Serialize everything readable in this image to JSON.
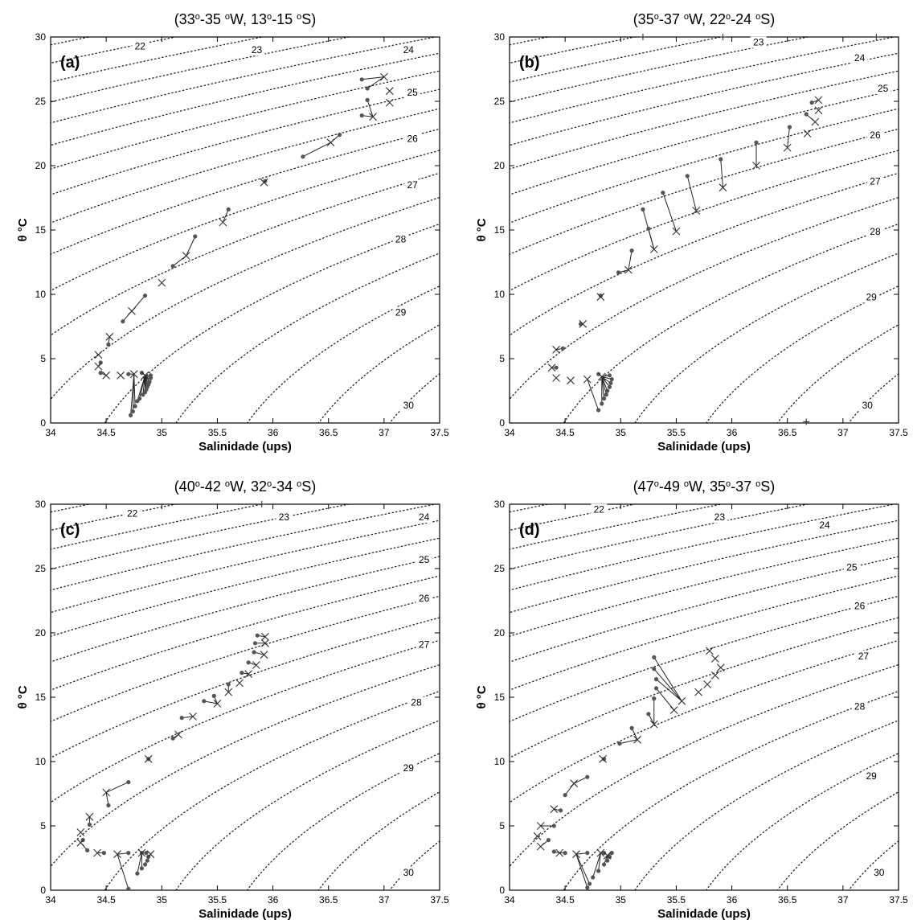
{
  "chart_data": [
    {
      "type": "scatter",
      "panel": "(a)",
      "title": "(33o-35 oW, 13o-15 oS)",
      "title_parts": [
        "(33",
        "o",
        "-35 ",
        "o",
        "W, 13",
        "o",
        "-15 ",
        "o",
        "S)"
      ],
      "xlabel": "Salinidade (ups)",
      "ylabel": "θ °C",
      "xlim": [
        34,
        37.5
      ],
      "ylim": [
        0,
        30
      ],
      "xticks": [
        "34",
        "34.5",
        "35",
        "35.5",
        "36",
        "36.5",
        "37",
        "37.5"
      ],
      "yticks": [
        "0",
        "5",
        "10",
        "15",
        "20",
        "25",
        "30"
      ],
      "isopycnal_labels": [
        "22",
        "23",
        "24",
        "25",
        "26",
        "27",
        "28",
        "29",
        "30"
      ],
      "series": [
        {
          "marker": "dot",
          "points": [
            [
              36.8,
              26.7
            ],
            [
              36.85,
              26.0
            ],
            [
              36.85,
              25.1
            ],
            [
              36.8,
              23.9
            ],
            [
              36.6,
              22.4
            ],
            [
              36.27,
              20.7
            ],
            [
              35.93,
              18.8
            ],
            [
              35.6,
              16.6
            ],
            [
              35.3,
              14.5
            ],
            [
              35.1,
              12.2
            ],
            [
              34.85,
              9.9
            ],
            [
              34.65,
              7.9
            ],
            [
              34.52,
              6.1
            ],
            [
              34.45,
              4.7
            ],
            [
              34.45,
              3.9
            ],
            [
              34.7,
              3.8
            ],
            [
              34.82,
              3.9
            ],
            [
              34.9,
              3.7
            ],
            [
              34.9,
              3.5
            ],
            [
              34.89,
              3.2
            ],
            [
              34.88,
              3.0
            ],
            [
              34.87,
              2.8
            ],
            [
              34.86,
              2.6
            ],
            [
              34.85,
              2.4
            ],
            [
              34.83,
              2.2
            ],
            [
              34.8,
              1.9
            ],
            [
              34.78,
              1.7
            ],
            [
              34.76,
              1.3
            ],
            [
              34.74,
              0.9
            ],
            [
              34.72,
              0.6
            ]
          ]
        },
        {
          "marker": "x",
          "points": [
            [
              37.0,
              26.9
            ],
            [
              37.05,
              25.8
            ],
            [
              37.05,
              24.9
            ],
            [
              36.9,
              23.8
            ],
            [
              36.52,
              21.8
            ],
            [
              35.92,
              18.7
            ],
            [
              35.55,
              15.6
            ],
            [
              35.22,
              13.0
            ],
            [
              35.0,
              10.9
            ],
            [
              34.73,
              8.7
            ],
            [
              34.53,
              6.7
            ],
            [
              34.43,
              5.3
            ],
            [
              34.43,
              4.4
            ],
            [
              34.5,
              3.7
            ],
            [
              34.63,
              3.7
            ],
            [
              34.75,
              3.8
            ],
            [
              34.85,
              3.7
            ]
          ]
        }
      ]
    },
    {
      "type": "scatter",
      "panel": "(b)",
      "title": "(35o-37 oW, 22o-24 oS)",
      "title_parts": [
        "(35",
        "o",
        "-37 ",
        "o",
        "W, 22",
        "o",
        "-24 ",
        "o",
        "S)"
      ],
      "xlabel": "Salinidade (ups)",
      "ylabel": "θ °C",
      "xlim": [
        34,
        37.5
      ],
      "ylim": [
        0,
        30
      ],
      "xticks": [
        "34",
        "34.5",
        "35",
        "35.5",
        "36",
        "36.5",
        "37",
        "37.5"
      ],
      "yticks": [
        "0",
        "5",
        "10",
        "15",
        "20",
        "25",
        "30"
      ],
      "isopycnal_labels": [
        "23",
        "24",
        "25",
        "26",
        "27",
        "28",
        "29",
        "30"
      ],
      "series": [
        {
          "marker": "dot",
          "points": [
            [
              36.72,
              24.9
            ],
            [
              36.67,
              24.0
            ],
            [
              36.52,
              23.0
            ],
            [
              36.22,
              21.8
            ],
            [
              35.9,
              20.5
            ],
            [
              35.6,
              19.2
            ],
            [
              35.38,
              17.9
            ],
            [
              35.2,
              16.6
            ],
            [
              35.25,
              15.1
            ],
            [
              35.1,
              13.4
            ],
            [
              34.98,
              11.7
            ],
            [
              34.82,
              9.9
            ],
            [
              34.64,
              7.7
            ],
            [
              34.48,
              5.8
            ],
            [
              34.42,
              4.3
            ],
            [
              34.8,
              3.8
            ],
            [
              34.9,
              3.7
            ],
            [
              34.92,
              3.4
            ],
            [
              34.91,
              3.1
            ],
            [
              34.9,
              2.8
            ],
            [
              34.88,
              2.5
            ],
            [
              34.87,
              2.2
            ],
            [
              34.85,
              1.9
            ],
            [
              34.83,
              1.5
            ],
            [
              34.8,
              1.0
            ]
          ]
        },
        {
          "marker": "x",
          "points": [
            [
              36.78,
              25.1
            ],
            [
              36.78,
              24.3
            ],
            [
              36.75,
              23.4
            ],
            [
              36.68,
              22.5
            ],
            [
              36.5,
              21.4
            ],
            [
              36.22,
              20.0
            ],
            [
              35.92,
              18.3
            ],
            [
              35.68,
              16.5
            ],
            [
              35.5,
              14.9
            ],
            [
              35.3,
              13.5
            ],
            [
              35.07,
              11.9
            ],
            [
              34.82,
              9.8
            ],
            [
              34.66,
              7.7
            ],
            [
              34.42,
              5.7
            ],
            [
              34.38,
              4.3
            ],
            [
              34.42,
              3.5
            ],
            [
              34.55,
              3.3
            ],
            [
              34.7,
              3.4
            ],
            [
              34.83,
              3.6
            ]
          ]
        },
        {
          "marker": "plus",
          "points": [
            [
              35.2,
              30.0
            ],
            [
              35.92,
              30.0
            ],
            [
              37.3,
              30.0
            ],
            [
              36.67,
              0.1
            ]
          ]
        }
      ]
    },
    {
      "type": "scatter",
      "panel": "(c)",
      "title": "(40o-42 oW, 32o-34 oS)",
      "title_parts": [
        "(40",
        "o",
        "-42 ",
        "o",
        "W, 32",
        "o",
        "-34 ",
        "o",
        "S)"
      ],
      "xlabel": "Salinidade (ups)",
      "ylabel": "θ °C",
      "xlim": [
        34,
        37.5
      ],
      "ylim": [
        0,
        30
      ],
      "xticks": [
        "34",
        "34.5",
        "35",
        "35.5",
        "36",
        "36.5",
        "37",
        "37.5"
      ],
      "yticks": [
        "0",
        "5",
        "10",
        "15",
        "20",
        "25",
        "30"
      ],
      "isopycnal_labels": [
        "22",
        "23",
        "24",
        "25",
        "26",
        "27",
        "28",
        "29",
        "30"
      ],
      "series": [
        {
          "marker": "dot",
          "points": [
            [
              35.86,
              19.8
            ],
            [
              35.84,
              19.2
            ],
            [
              35.83,
              18.5
            ],
            [
              35.78,
              17.7
            ],
            [
              35.72,
              16.9
            ],
            [
              35.6,
              16.0
            ],
            [
              35.47,
              15.1
            ],
            [
              35.38,
              14.7
            ],
            [
              35.18,
              13.4
            ],
            [
              35.1,
              11.8
            ],
            [
              34.88,
              10.2
            ],
            [
              34.7,
              8.4
            ],
            [
              34.52,
              6.6
            ],
            [
              34.35,
              5.1
            ],
            [
              34.29,
              3.9
            ],
            [
              34.33,
              3.1
            ],
            [
              34.48,
              2.9
            ],
            [
              34.7,
              2.9
            ],
            [
              34.82,
              2.9
            ],
            [
              34.86,
              2.9
            ],
            [
              34.88,
              2.6
            ],
            [
              34.87,
              2.3
            ],
            [
              34.85,
              2.0
            ],
            [
              34.82,
              1.7
            ],
            [
              34.78,
              1.3
            ],
            [
              34.7,
              0.1
            ]
          ]
        },
        {
          "marker": "x",
          "points": [
            [
              35.93,
              19.7
            ],
            [
              35.93,
              19.2
            ],
            [
              35.92,
              18.3
            ],
            [
              35.85,
              17.5
            ],
            [
              35.78,
              16.8
            ],
            [
              35.7,
              16.1
            ],
            [
              35.6,
              15.4
            ],
            [
              35.5,
              14.5
            ],
            [
              35.28,
              13.5
            ],
            [
              35.15,
              12.1
            ],
            [
              34.88,
              10.2
            ],
            [
              34.5,
              7.6
            ],
            [
              34.35,
              5.7
            ],
            [
              34.27,
              4.5
            ],
            [
              34.27,
              3.7
            ],
            [
              34.42,
              2.9
            ],
            [
              34.6,
              2.8
            ],
            [
              34.82,
              2.9
            ],
            [
              34.9,
              2.8
            ]
          ]
        },
        {
          "marker": "plus",
          "points": [
            [
              35.9,
              30.0
            ]
          ]
        }
      ]
    },
    {
      "type": "scatter",
      "panel": "(d)",
      "title": "(47o-49 oW, 35o-37 oS)",
      "title_parts": [
        "(47",
        "o",
        "-49 ",
        "o",
        "W, 35",
        "o",
        "-37 ",
        "o",
        "S)"
      ],
      "xlabel": "Salinidade (ups)",
      "ylabel": "θ °C",
      "xlim": [
        34,
        37.5
      ],
      "ylim": [
        0,
        30
      ],
      "xticks": [
        "34",
        "34.5",
        "35",
        "35.5",
        "36",
        "36.5",
        "37",
        "37.5"
      ],
      "yticks": [
        "0",
        "5",
        "10",
        "15",
        "20",
        "25",
        "30"
      ],
      "isopycnal_labels": [
        "22",
        "23",
        "24",
        "25",
        "26",
        "27",
        "28",
        "29",
        "30"
      ],
      "series": [
        {
          "marker": "dot",
          "points": [
            [
              35.3,
              18.1
            ],
            [
              35.3,
              17.2
            ],
            [
              35.32,
              16.4
            ],
            [
              35.32,
              15.7
            ],
            [
              35.3,
              14.9
            ],
            [
              35.25,
              13.7
            ],
            [
              35.1,
              12.6
            ],
            [
              34.99,
              11.4
            ],
            [
              34.85,
              10.2
            ],
            [
              34.7,
              8.8
            ],
            [
              34.5,
              7.4
            ],
            [
              34.46,
              6.2
            ],
            [
              34.4,
              5.0
            ],
            [
              34.35,
              3.9
            ],
            [
              34.4,
              3.0
            ],
            [
              34.5,
              2.9
            ],
            [
              34.7,
              2.9
            ],
            [
              34.85,
              2.9
            ],
            [
              34.92,
              2.9
            ],
            [
              34.9,
              2.6
            ],
            [
              34.88,
              2.3
            ],
            [
              34.85,
              2.0
            ],
            [
              34.8,
              1.5
            ],
            [
              34.75,
              1.0
            ],
            [
              34.72,
              0.5
            ],
            [
              34.7,
              0.2
            ]
          ]
        },
        {
          "marker": "x",
          "points": [
            [
              35.8,
              18.6
            ],
            [
              35.85,
              18.0
            ],
            [
              35.9,
              17.3
            ],
            [
              35.85,
              16.7
            ],
            [
              35.78,
              16.0
            ],
            [
              35.7,
              15.4
            ],
            [
              35.55,
              14.7
            ],
            [
              35.48,
              14.0
            ],
            [
              35.3,
              12.9
            ],
            [
              35.15,
              11.7
            ],
            [
              34.84,
              10.2
            ],
            [
              34.58,
              8.3
            ],
            [
              34.4,
              6.3
            ],
            [
              34.28,
              5.0
            ],
            [
              34.25,
              4.2
            ],
            [
              34.28,
              3.4
            ],
            [
              34.45,
              2.9
            ],
            [
              34.6,
              2.8
            ],
            [
              34.82,
              2.9
            ],
            [
              34.88,
              2.7
            ]
          ]
        }
      ]
    }
  ]
}
